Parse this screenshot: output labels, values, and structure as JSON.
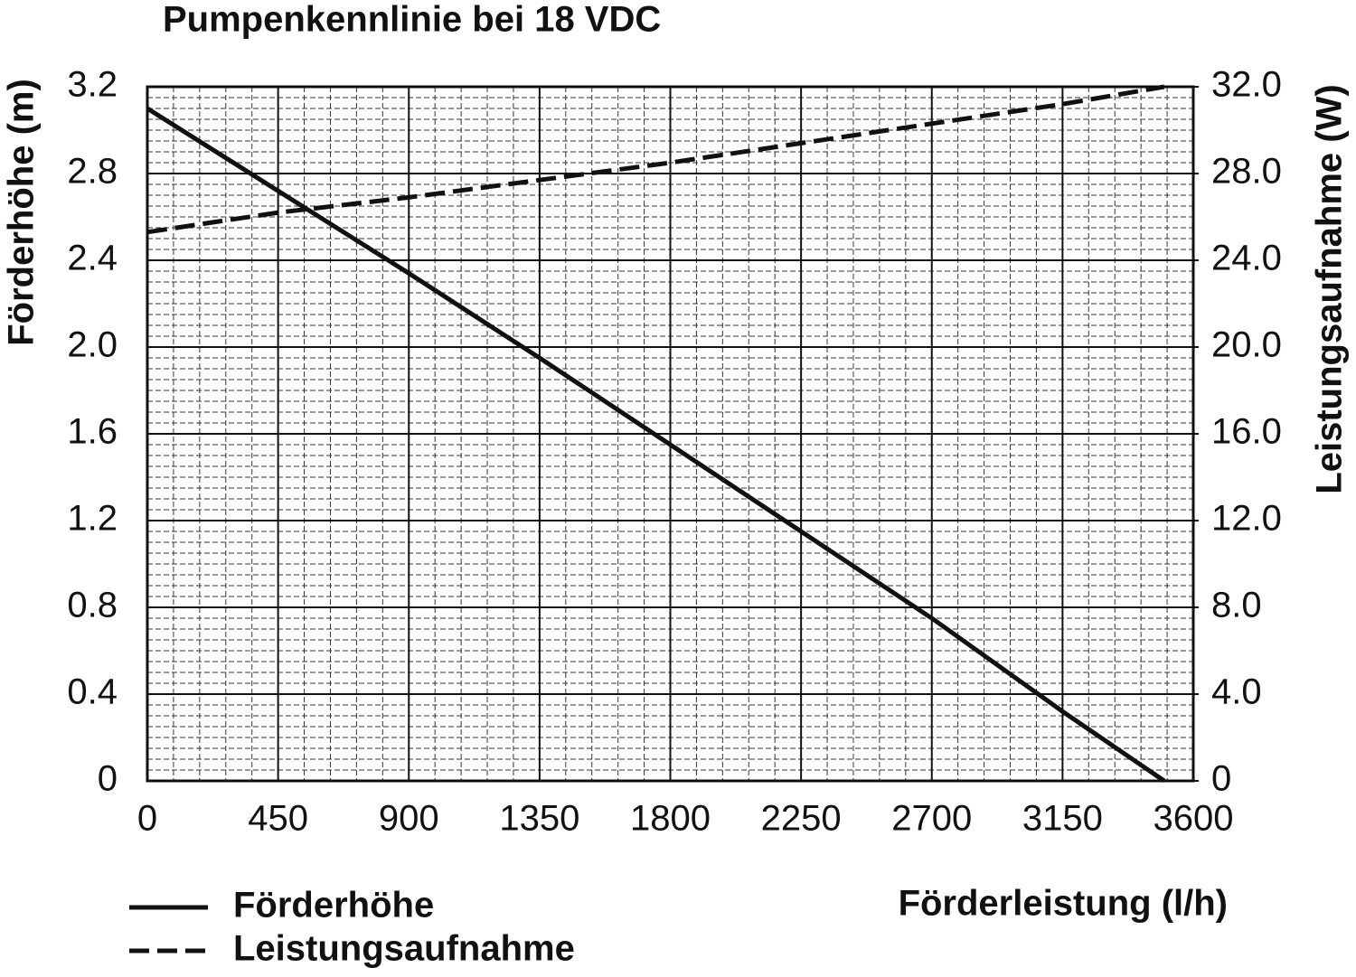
{
  "chart_data": {
    "type": "line",
    "title": "Pumpenkennlinie bei 18 VDC",
    "x_label": "Förderleistung (l/h)",
    "y_label": "Förderhöhe (m)",
    "y2_label": "Leistungsaufnahme (W)",
    "x": [
      0,
      450,
      900,
      1350,
      1800,
      2250,
      2700,
      3150,
      3500
    ],
    "series": [
      {
        "name": "Förderhöhe",
        "color": "#111111",
        "dash": "solid",
        "values": [
          3.1,
          2.72,
          2.34,
          1.95,
          1.55,
          1.15,
          0.75,
          0.32,
          0
        ]
      },
      {
        "name": "Leistungsaufnahme",
        "color": "#111111",
        "dash": "dashed",
        "axis": "y2",
        "values": [
          25.3,
          26.2,
          26.9,
          27.7,
          28.5,
          29.4,
          30.3,
          31.2,
          32.0
        ]
      }
    ],
    "xlim": [
      0,
      3600
    ],
    "xticks": [
      0,
      450,
      900,
      1350,
      1800,
      2250,
      2700,
      3150,
      3600
    ],
    "ylim": [
      0,
      3.2
    ],
    "yticks": [
      0,
      0.4,
      0.8,
      1.2,
      1.6,
      {
        "value": 2,
        "label": "2.0"
      },
      2.4,
      2.8,
      3.2
    ],
    "y2lim": [
      0,
      32
    ],
    "y2ticks": [
      0,
      {
        "value": 4,
        "label": "4.0"
      },
      {
        "value": 8,
        "label": "8.0"
      },
      {
        "value": 12,
        "label": "12.0"
      },
      {
        "value": 16,
        "label": "16.0"
      },
      {
        "value": 20,
        "label": "20.0"
      },
      {
        "value": 24,
        "label": "24.0"
      },
      {
        "value": 28,
        "label": "28.0"
      },
      {
        "value": 32,
        "label": "32.0"
      }
    ],
    "grid": true,
    "minor_grid": true,
    "legend": "bottom-left"
  }
}
